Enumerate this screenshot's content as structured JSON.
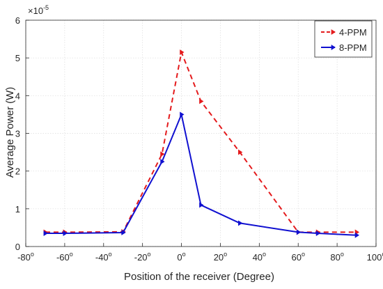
{
  "chart_data": {
    "type": "line",
    "xlabel": "Position of the receiver (Degree)",
    "ylabel": "Average Power (W)",
    "y_exponent_label": "×10",
    "y_exponent_power": "-5",
    "xlim": [
      -80,
      100
    ],
    "ylim": [
      0,
      6
    ],
    "x_ticks": [
      -80,
      -60,
      -40,
      -20,
      0,
      20,
      40,
      60,
      80,
      100
    ],
    "x_tick_labels": [
      "-80",
      "-60",
      "-40",
      "-20",
      "0",
      "20",
      "40",
      "60",
      "80",
      "100"
    ],
    "x_tick_degree_mark": "o",
    "y_ticks": [
      0,
      1,
      2,
      3,
      4,
      5,
      6
    ],
    "y_tick_labels": [
      "0",
      "1",
      "2",
      "3",
      "4",
      "5",
      "6"
    ],
    "grid": true,
    "legend_position": "top-right",
    "series": [
      {
        "name": "4-PPM",
        "color": "#e41a1c",
        "line_style": "dashed",
        "marker": "right-triangle",
        "x": [
          -70,
          -60,
          -30,
          -10,
          0,
          10,
          30,
          60,
          70,
          90
        ],
        "y": [
          0.38,
          0.38,
          0.39,
          2.45,
          5.15,
          3.85,
          2.5,
          0.38,
          0.38,
          0.38
        ]
      },
      {
        "name": "8-PPM",
        "color": "#1010d0",
        "line_style": "solid",
        "marker": "right-triangle",
        "x": [
          -70,
          -60,
          -30,
          -10,
          0,
          10,
          30,
          60,
          70,
          90
        ],
        "y": [
          0.35,
          0.35,
          0.37,
          2.25,
          3.5,
          1.1,
          0.62,
          0.38,
          0.35,
          0.3
        ]
      }
    ]
  }
}
